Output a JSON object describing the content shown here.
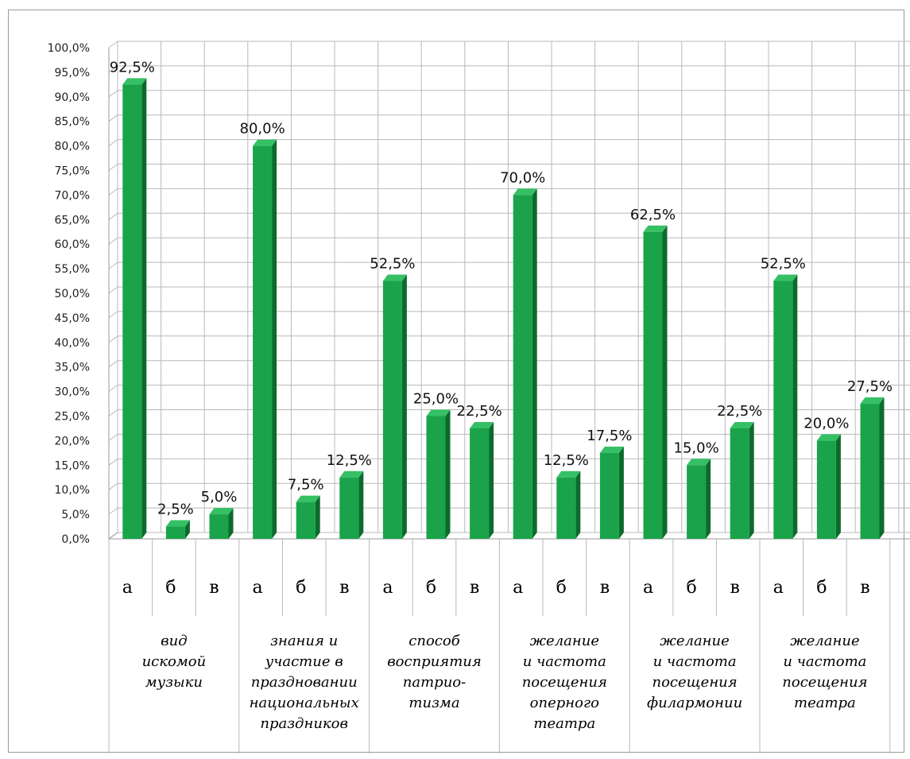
{
  "chart_data": {
    "type": "bar",
    "ylim": [
      0,
      100
    ],
    "y_ticks": [
      "0,0%",
      "5,0%",
      "10,0%",
      "15,0%",
      "20,0%",
      "25,0%",
      "30,0%",
      "35,0%",
      "40,0%",
      "45,0%",
      "50,0%",
      "55,0%",
      "60,0%",
      "65,0%",
      "70,0%",
      "75,0%",
      "80,0%",
      "85,0%",
      "90,0%",
      "95,0%",
      "100,0%"
    ],
    "grid": true,
    "legend": "none",
    "bar_color": "#1aa34a",
    "groups": [
      {
        "label": [
          "вид",
          "искомой",
          "музыки"
        ],
        "categories": [
          "а",
          "б",
          "в"
        ],
        "values": [
          92.5,
          2.5,
          5.0
        ],
        "data_labels": [
          "92,5%",
          "2,5%",
          "5,0%"
        ]
      },
      {
        "label": [
          "знания и",
          "участие в",
          "праздновании",
          "национальных",
          "праздников"
        ],
        "categories": [
          "а",
          "б",
          "в"
        ],
        "values": [
          80.0,
          7.5,
          12.5
        ],
        "data_labels": [
          "80,0%",
          "7,5%",
          "12,5%"
        ]
      },
      {
        "label": [
          "способ",
          "восприятия",
          "патрио-",
          "тизма"
        ],
        "categories": [
          "а",
          "б",
          "в"
        ],
        "values": [
          52.5,
          25.0,
          22.5
        ],
        "data_labels": [
          "52,5%",
          "25,0%",
          "22,5%"
        ]
      },
      {
        "label": [
          "желание",
          "и частота",
          "посещения",
          "оперного",
          "театра"
        ],
        "categories": [
          "а",
          "б",
          "в"
        ],
        "values": [
          70.0,
          12.5,
          17.5
        ],
        "data_labels": [
          "70,0%",
          "12,5%",
          "17,5%"
        ]
      },
      {
        "label": [
          "желание",
          "и частота",
          "посещения",
          "филармонии"
        ],
        "categories": [
          "а",
          "б",
          "в"
        ],
        "values": [
          62.5,
          15.0,
          22.5
        ],
        "data_labels": [
          "62,5%",
          "15,0%",
          "22,5%"
        ]
      },
      {
        "label": [
          "желание",
          "и частота",
          "посещения",
          "театра"
        ],
        "categories": [
          "а",
          "б",
          "в"
        ],
        "values": [
          52.5,
          20.0,
          27.5
        ],
        "data_labels": [
          "52,5%",
          "20,0%",
          "27,5%"
        ]
      }
    ]
  }
}
